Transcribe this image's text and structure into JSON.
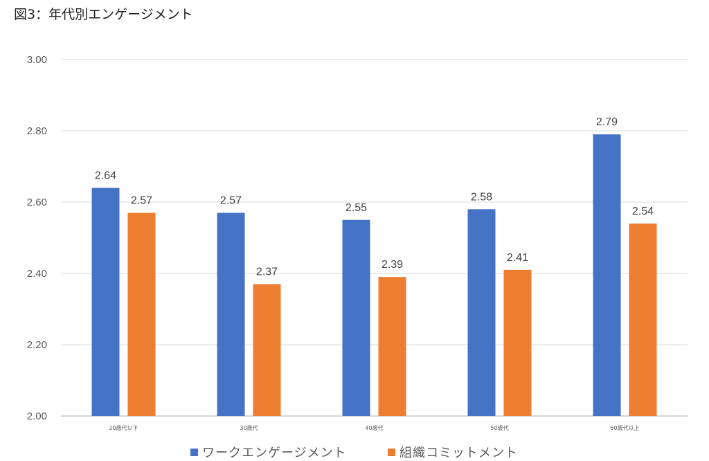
{
  "title": "図3：年代別エンゲージメント",
  "colors": {
    "series_0": "#4472C4",
    "series_1": "#ED7D31",
    "grid": "#D9D9D9",
    "axis": "#BFBFBF"
  },
  "chart_data": {
    "type": "bar",
    "title": "図3：年代別エンゲージメント",
    "categories": [
      "20歳代以下",
      "30歳代",
      "40歳代",
      "50歳代",
      "60歳代以上"
    ],
    "series": [
      {
        "name": "ワークエンゲージメント",
        "values": [
          2.64,
          2.57,
          2.55,
          2.58,
          2.79
        ],
        "labels": [
          "2.64",
          "2.57",
          "2.55",
          "2.58",
          "2.79"
        ]
      },
      {
        "name": "組織コミットメント",
        "values": [
          2.57,
          2.37,
          2.39,
          2.41,
          2.54
        ],
        "labels": [
          "2.57",
          "2.37",
          "2.39",
          "2.41",
          "2.54"
        ]
      }
    ],
    "yticks": [
      "2.00",
      "2.20",
      "2.40",
      "2.60",
      "2.80",
      "3.00"
    ],
    "ylim": [
      2.0,
      3.0
    ],
    "grid": true,
    "legend_position": "bottom"
  }
}
